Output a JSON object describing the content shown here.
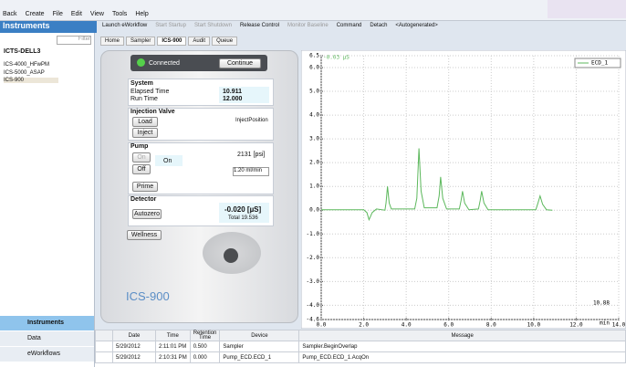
{
  "menu": [
    "Back",
    "Create",
    "File",
    "Edit",
    "View",
    "Tools",
    "Help"
  ],
  "sidebar": {
    "title": "Instruments",
    "filter": "Filter",
    "host": "ICTS-DELL3",
    "instruments": [
      "ICS-4000_HFwPM",
      "ICS-5000_ASAP",
      "ICS-900"
    ],
    "nav": [
      "Instruments",
      "Data",
      "eWorkflows"
    ]
  },
  "toolbar": [
    "Launch eWorkflow",
    "Start Startup",
    "Start Shutdown",
    "Release Control",
    "Monitor Baseline",
    "Command",
    "Detach",
    "<Autogenerated>"
  ],
  "tabs": [
    "Home",
    "Sampler",
    "ICS-900",
    "Audit",
    "Queue"
  ],
  "panel": {
    "status": "Connected",
    "continue": "Continue",
    "system": {
      "title": "System",
      "elapsed_label": "Elapsed Time",
      "elapsed": "10.911",
      "run_label": "Run Time",
      "run": "12.000"
    },
    "valve": {
      "title": "Injection Valve",
      "load": "Load",
      "inject": "Inject",
      "position": "InjectPosition"
    },
    "pump": {
      "title": "Pump",
      "on_button": "On",
      "off_button": "Off",
      "state": "On",
      "pressure": "2131 [psi]",
      "flow": "1.20 ml/min",
      "prime": "Prime"
    },
    "detector": {
      "title": "Detector",
      "autozero": "Autozero",
      "signal": "-0.020 [µS]",
      "total": "Total 19.536"
    },
    "wellness": "Wellness",
    "model": "ICS-900"
  },
  "chart_data": {
    "type": "line",
    "annotation": "-0.03 µS",
    "x_label": "min",
    "cursor": "10.88",
    "x": [
      0,
      2.0,
      2.15,
      2.25,
      2.4,
      2.6,
      3.0,
      3.05,
      3.12,
      3.2,
      3.3,
      4.4,
      4.5,
      4.6,
      4.7,
      4.85,
      5.45,
      5.55,
      5.62,
      5.72,
      5.9,
      6.5,
      6.58,
      6.65,
      6.75,
      6.95,
      7.4,
      7.48,
      7.55,
      7.66,
      7.85,
      10.1,
      10.2,
      10.3,
      10.42,
      10.6,
      10.88
    ],
    "series": [
      {
        "name": "ECD_1",
        "color": "#5cb85c",
        "values": [
          0.02,
          0.02,
          -0.1,
          -0.4,
          -0.1,
          0.05,
          0.0,
          0.3,
          1.0,
          0.3,
          0.05,
          0.05,
          0.5,
          2.6,
          0.8,
          0.1,
          0.1,
          0.6,
          1.4,
          0.5,
          0.05,
          0.05,
          0.4,
          0.8,
          0.3,
          0.02,
          0.05,
          0.4,
          0.8,
          0.3,
          0.02,
          0.02,
          0.3,
          0.6,
          0.25,
          0.02,
          0.0
        ]
      }
    ],
    "xlim": [
      0,
      14
    ],
    "xticks": [
      {
        "value": 0,
        "label": "0.0"
      },
      {
        "value": 2,
        "label": "2.0"
      },
      {
        "value": 4,
        "label": "4.0"
      },
      {
        "value": 6,
        "label": "6.0"
      },
      {
        "value": 8,
        "label": "8.0"
      },
      {
        "value": 10,
        "label": "10.0"
      },
      {
        "value": 12,
        "label": "12.0"
      },
      {
        "value": 14,
        "label": "14.0"
      }
    ],
    "ylim": [
      -4.6,
      6.5
    ],
    "yticks": [
      6.5,
      {
        "value": 6,
        "label": "6.0"
      },
      {
        "value": 5,
        "label": "5.0"
      },
      {
        "value": 4,
        "label": "4.0"
      },
      {
        "value": 3,
        "label": "3.0"
      },
      {
        "value": 2,
        "label": "2.0"
      },
      {
        "value": 1,
        "label": "1.0"
      },
      {
        "value": 0,
        "label": "0.0"
      },
      {
        "value": -1,
        "label": "-1.0"
      },
      {
        "value": -2,
        "label": "-2.0"
      },
      {
        "value": -3,
        "label": "-3.0"
      },
      {
        "value": -4,
        "label": "-4.0"
      },
      -4.6
    ],
    "grid": true
  },
  "audit_table": {
    "columns": [
      "Date",
      "Time",
      "Retention Time",
      "Device",
      "Message"
    ],
    "rows": [
      [
        "5/29/2012",
        "2:11:01 PM",
        "0.500",
        "Sampler",
        "Sampler.BeginOverlap"
      ],
      [
        "5/29/2012",
        "2:10:31 PM",
        "0.000",
        "Pump_ECD.ECD_1",
        "Pump_ECD.ECD_1.AcqOn"
      ]
    ]
  }
}
